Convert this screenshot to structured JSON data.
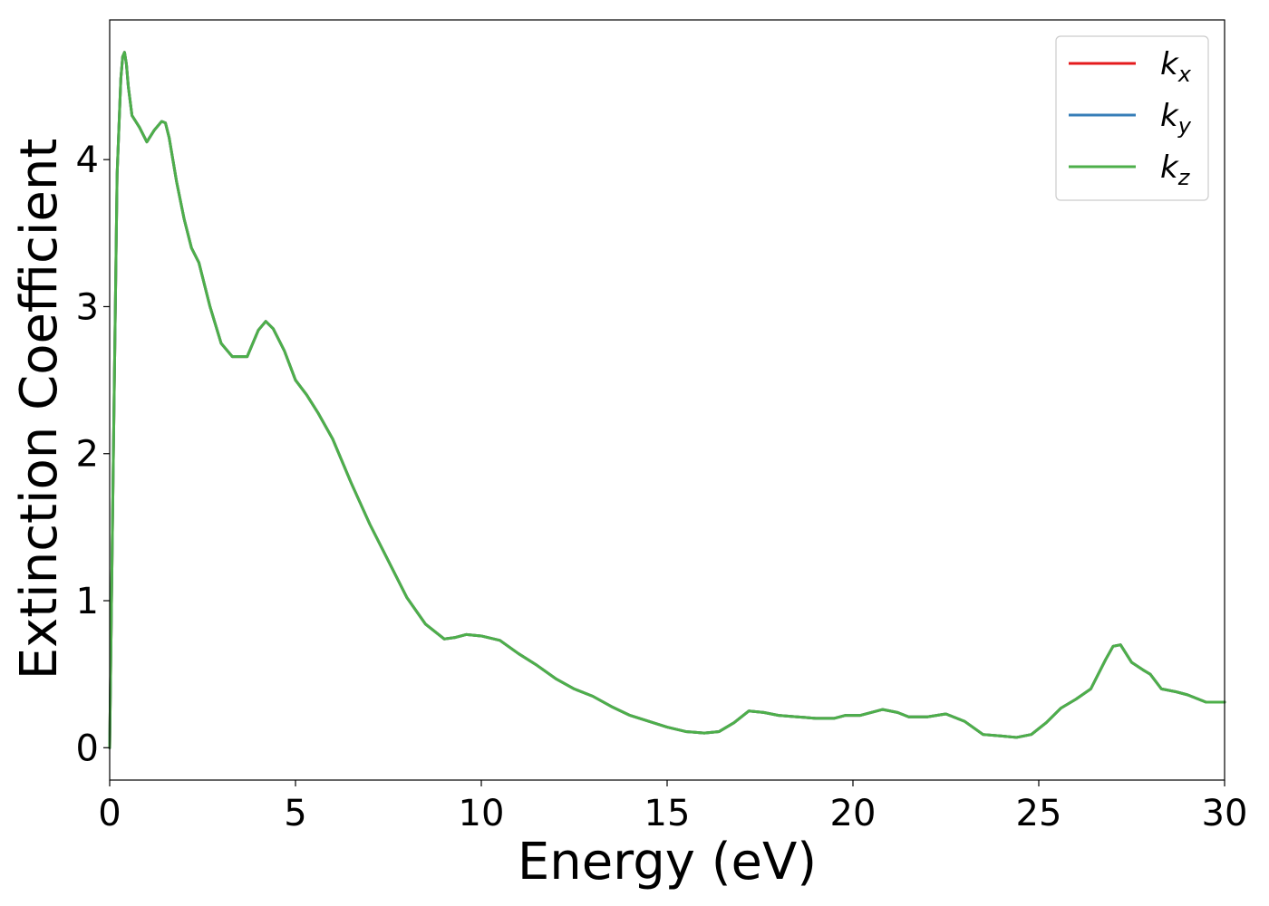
{
  "chart_data": {
    "type": "line",
    "xlabel": "Energy (eV)",
    "ylabel": "Extinction Coefficient",
    "xlim": [
      0,
      30
    ],
    "ylim": [
      -0.22,
      4.95
    ],
    "xticks": [
      0,
      5,
      10,
      15,
      20,
      25,
      30
    ],
    "yticks": [
      0,
      1,
      2,
      3,
      4
    ],
    "grid": false,
    "legend_position": "top-right",
    "series": [
      {
        "name": "k_x",
        "label_base": "k",
        "label_sub": "x",
        "color": "#e41a1c",
        "x": [
          0,
          0.1,
          0.2,
          0.3,
          0.35,
          0.4,
          0.45,
          0.5,
          0.6,
          0.8,
          1.0,
          1.2,
          1.4,
          1.5,
          1.6,
          1.7,
          1.8,
          2.0,
          2.2,
          2.4,
          2.7,
          3.0,
          3.3,
          3.7,
          4.0,
          4.2,
          4.4,
          4.7,
          5.0,
          5.3,
          5.6,
          6.0,
          6.5,
          7.0,
          7.5,
          8.0,
          8.5,
          9.0,
          9.3,
          9.6,
          10.0,
          10.5,
          11.0,
          11.5,
          12.0,
          12.5,
          13.0,
          13.5,
          14.0,
          14.5,
          15.0,
          15.5,
          16.0,
          16.4,
          16.8,
          17.2,
          17.6,
          18.0,
          18.5,
          19.0,
          19.5,
          19.8,
          20.2,
          20.5,
          20.8,
          21.2,
          21.5,
          22.0,
          22.5,
          23.0,
          23.5,
          24.0,
          24.4,
          24.8,
          25.2,
          25.6,
          26.0,
          26.4,
          26.8,
          27.0,
          27.2,
          27.5,
          27.8,
          28.0,
          28.3,
          28.7,
          29.0,
          29.5,
          30.0
        ],
        "y": [
          0.0,
          2.0,
          3.9,
          4.55,
          4.7,
          4.73,
          4.65,
          4.5,
          4.3,
          4.22,
          4.12,
          4.2,
          4.26,
          4.25,
          4.15,
          4.0,
          3.85,
          3.6,
          3.4,
          3.3,
          3.0,
          2.75,
          2.66,
          2.66,
          2.84,
          2.9,
          2.85,
          2.7,
          2.5,
          2.4,
          2.28,
          2.1,
          1.8,
          1.52,
          1.27,
          1.02,
          0.84,
          0.74,
          0.75,
          0.77,
          0.76,
          0.73,
          0.64,
          0.56,
          0.47,
          0.4,
          0.35,
          0.28,
          0.22,
          0.18,
          0.14,
          0.11,
          0.1,
          0.11,
          0.17,
          0.25,
          0.24,
          0.22,
          0.21,
          0.2,
          0.2,
          0.22,
          0.22,
          0.24,
          0.26,
          0.24,
          0.21,
          0.21,
          0.23,
          0.18,
          0.09,
          0.08,
          0.07,
          0.09,
          0.17,
          0.27,
          0.33,
          0.4,
          0.6,
          0.69,
          0.7,
          0.58,
          0.53,
          0.5,
          0.4,
          0.38,
          0.36,
          0.31,
          0.31
        ]
      },
      {
        "name": "k_y",
        "label_base": "k",
        "label_sub": "y",
        "color": "#377eb8",
        "x": [
          0,
          0.1,
          0.2,
          0.3,
          0.35,
          0.4,
          0.45,
          0.5,
          0.6,
          0.8,
          1.0,
          1.2,
          1.4,
          1.5,
          1.6,
          1.7,
          1.8,
          2.0,
          2.2,
          2.4,
          2.7,
          3.0,
          3.3,
          3.7,
          4.0,
          4.2,
          4.4,
          4.7,
          5.0,
          5.3,
          5.6,
          6.0,
          6.5,
          7.0,
          7.5,
          8.0,
          8.5,
          9.0,
          9.3,
          9.6,
          10.0,
          10.5,
          11.0,
          11.5,
          12.0,
          12.5,
          13.0,
          13.5,
          14.0,
          14.5,
          15.0,
          15.5,
          16.0,
          16.4,
          16.8,
          17.2,
          17.6,
          18.0,
          18.5,
          19.0,
          19.5,
          19.8,
          20.2,
          20.5,
          20.8,
          21.2,
          21.5,
          22.0,
          22.5,
          23.0,
          23.5,
          24.0,
          24.4,
          24.8,
          25.2,
          25.6,
          26.0,
          26.4,
          26.8,
          27.0,
          27.2,
          27.5,
          27.8,
          28.0,
          28.3,
          28.7,
          29.0,
          29.5,
          30.0
        ],
        "y": [
          0.0,
          2.0,
          3.9,
          4.55,
          4.7,
          4.73,
          4.65,
          4.5,
          4.3,
          4.22,
          4.12,
          4.2,
          4.26,
          4.25,
          4.15,
          4.0,
          3.85,
          3.6,
          3.4,
          3.3,
          3.0,
          2.75,
          2.66,
          2.66,
          2.84,
          2.9,
          2.85,
          2.7,
          2.5,
          2.4,
          2.28,
          2.1,
          1.8,
          1.52,
          1.27,
          1.02,
          0.84,
          0.74,
          0.75,
          0.77,
          0.76,
          0.73,
          0.64,
          0.56,
          0.47,
          0.4,
          0.35,
          0.28,
          0.22,
          0.18,
          0.14,
          0.11,
          0.1,
          0.11,
          0.17,
          0.25,
          0.24,
          0.22,
          0.21,
          0.2,
          0.2,
          0.22,
          0.22,
          0.24,
          0.26,
          0.24,
          0.21,
          0.21,
          0.23,
          0.18,
          0.09,
          0.08,
          0.07,
          0.09,
          0.17,
          0.27,
          0.33,
          0.4,
          0.6,
          0.69,
          0.7,
          0.58,
          0.53,
          0.5,
          0.4,
          0.38,
          0.36,
          0.31,
          0.31
        ]
      },
      {
        "name": "k_z",
        "label_base": "k",
        "label_sub": "z",
        "color": "#4daf4a",
        "x": [
          0,
          0.1,
          0.2,
          0.3,
          0.35,
          0.4,
          0.45,
          0.5,
          0.6,
          0.8,
          1.0,
          1.2,
          1.4,
          1.5,
          1.6,
          1.7,
          1.8,
          2.0,
          2.2,
          2.4,
          2.7,
          3.0,
          3.3,
          3.7,
          4.0,
          4.2,
          4.4,
          4.7,
          5.0,
          5.3,
          5.6,
          6.0,
          6.5,
          7.0,
          7.5,
          8.0,
          8.5,
          9.0,
          9.3,
          9.6,
          10.0,
          10.5,
          11.0,
          11.5,
          12.0,
          12.5,
          13.0,
          13.5,
          14.0,
          14.5,
          15.0,
          15.5,
          16.0,
          16.4,
          16.8,
          17.2,
          17.6,
          18.0,
          18.5,
          19.0,
          19.5,
          19.8,
          20.2,
          20.5,
          20.8,
          21.2,
          21.5,
          22.0,
          22.5,
          23.0,
          23.5,
          24.0,
          24.4,
          24.8,
          25.2,
          25.6,
          26.0,
          26.4,
          26.8,
          27.0,
          27.2,
          27.5,
          27.8,
          28.0,
          28.3,
          28.7,
          29.0,
          29.5,
          30.0
        ],
        "y": [
          0.0,
          2.0,
          3.9,
          4.55,
          4.7,
          4.73,
          4.65,
          4.5,
          4.3,
          4.22,
          4.12,
          4.2,
          4.26,
          4.25,
          4.15,
          4.0,
          3.85,
          3.6,
          3.4,
          3.3,
          3.0,
          2.75,
          2.66,
          2.66,
          2.84,
          2.9,
          2.85,
          2.7,
          2.5,
          2.4,
          2.28,
          2.1,
          1.8,
          1.52,
          1.27,
          1.02,
          0.84,
          0.74,
          0.75,
          0.77,
          0.76,
          0.73,
          0.64,
          0.56,
          0.47,
          0.4,
          0.35,
          0.28,
          0.22,
          0.18,
          0.14,
          0.11,
          0.1,
          0.11,
          0.17,
          0.25,
          0.24,
          0.22,
          0.21,
          0.2,
          0.2,
          0.22,
          0.22,
          0.24,
          0.26,
          0.24,
          0.21,
          0.21,
          0.23,
          0.18,
          0.09,
          0.08,
          0.07,
          0.09,
          0.17,
          0.27,
          0.33,
          0.4,
          0.6,
          0.69,
          0.7,
          0.58,
          0.53,
          0.5,
          0.4,
          0.38,
          0.36,
          0.31,
          0.31
        ]
      }
    ]
  }
}
